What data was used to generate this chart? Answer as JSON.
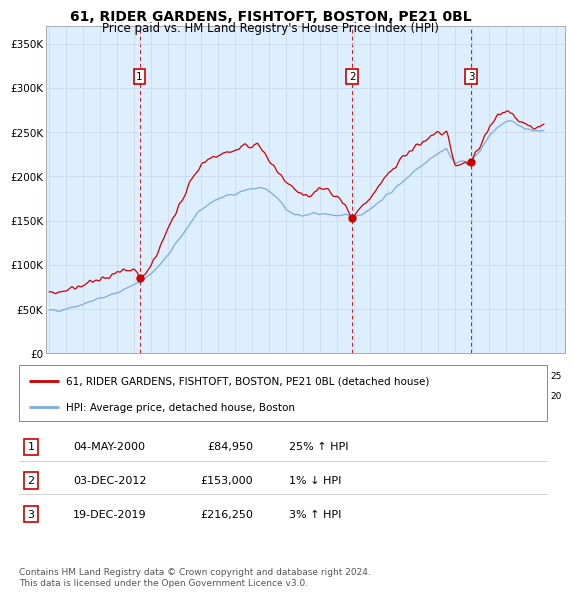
{
  "title": "61, RIDER GARDENS, FISHTOFT, BOSTON, PE21 0BL",
  "subtitle": "Price paid vs. HM Land Registry's House Price Index (HPI)",
  "xlim_start": 1994.8,
  "xlim_end": 2025.5,
  "ylim": [
    0,
    370000
  ],
  "yticks": [
    0,
    50000,
    100000,
    150000,
    200000,
    250000,
    300000,
    350000
  ],
  "sale_dates": [
    2000.34,
    2012.92,
    2019.96
  ],
  "sale_prices": [
    84950,
    153000,
    216250
  ],
  "sale_labels": [
    "1",
    "2",
    "3"
  ],
  "red_line_color": "#cc0000",
  "blue_line_color": "#7aaddc",
  "background_color": "#ddeeff",
  "plot_bg": "#ffffff",
  "legend_label_red": "61, RIDER GARDENS, FISHTOFT, BOSTON, PE21 0BL (detached house)",
  "legend_label_blue": "HPI: Average price, detached house, Boston",
  "table_rows": [
    [
      "1",
      "04-MAY-2000",
      "£84,950",
      "25% ↑ HPI"
    ],
    [
      "2",
      "03-DEC-2012",
      "£153,000",
      "1% ↓ HPI"
    ],
    [
      "3",
      "19-DEC-2019",
      "£216,250",
      "3% ↑ HPI"
    ]
  ],
  "footnote": "Contains HM Land Registry data © Crown copyright and database right 2024.\nThis data is licensed under the Open Government Licence v3.0."
}
